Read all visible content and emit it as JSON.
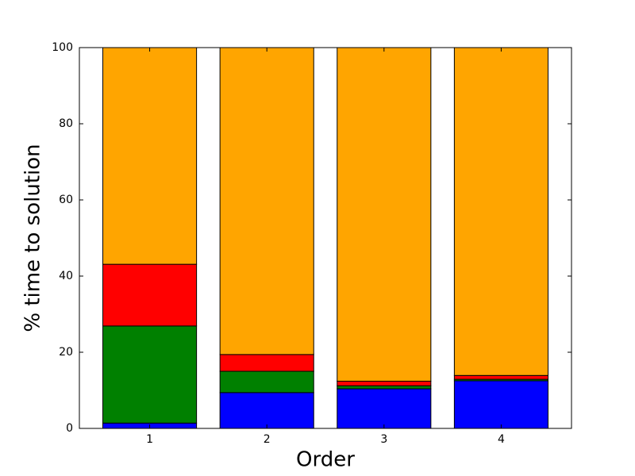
{
  "chart_data": {
    "type": "stacked_bar",
    "x_label": "Order",
    "y_label": "% time to solution",
    "categories": [
      "1",
      "2",
      "3",
      "4"
    ],
    "series": [
      {
        "color": "#0000ff",
        "values": [
          1.4,
          9.4,
          10.4,
          12.5
        ]
      },
      {
        "color": "#008000",
        "values": [
          25.5,
          5.6,
          0.8,
          0.4
        ]
      },
      {
        "color": "#ff0000",
        "values": [
          16.2,
          4.4,
          1.2,
          1.0
        ]
      },
      {
        "color": "#ffa500",
        "values": [
          56.9,
          80.6,
          87.6,
          86.1
        ]
      }
    ],
    "ylim": [
      0,
      100
    ],
    "yticks": [
      0,
      20,
      40,
      60,
      80,
      100
    ],
    "grid": false
  }
}
